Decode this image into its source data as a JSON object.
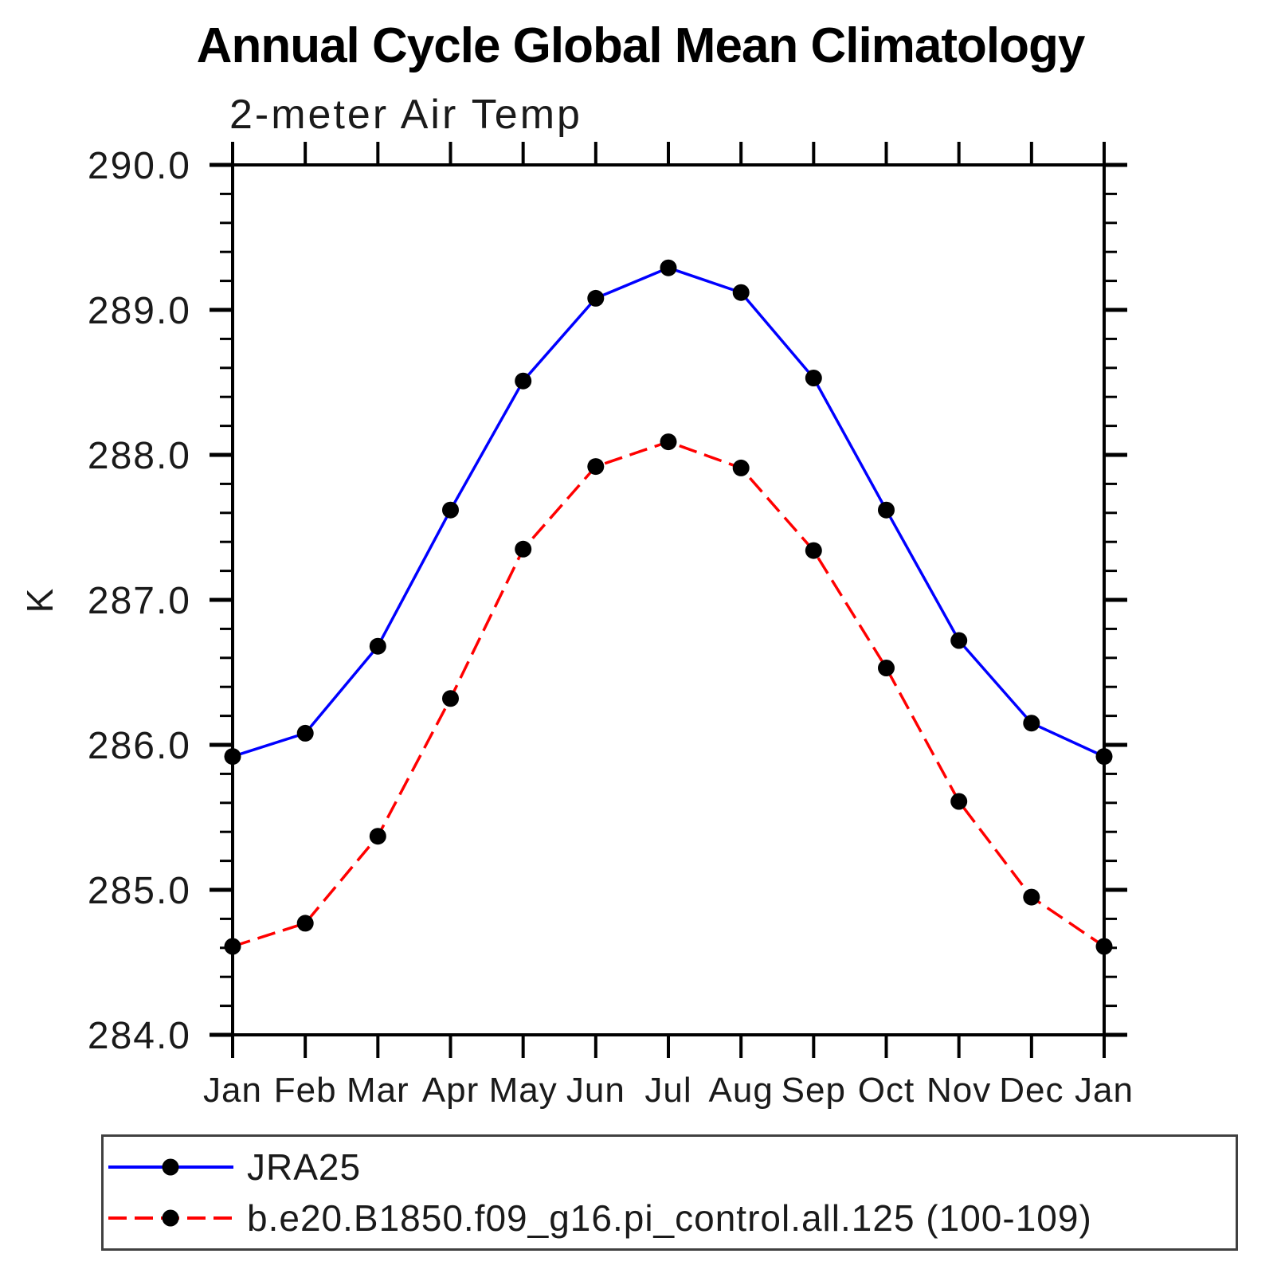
{
  "title": "Annual Cycle Global Mean Climatology",
  "subtitle": "2-meter Air Temp",
  "chart_data": {
    "type": "line",
    "title": "Annual Cycle Global Mean Climatology",
    "subtitle": "2-meter Air Temp",
    "ylabel": "K",
    "xlabel": "",
    "categories": [
      "Jan",
      "Feb",
      "Mar",
      "Apr",
      "May",
      "Jun",
      "Jul",
      "Aug",
      "Sep",
      "Oct",
      "Nov",
      "Dec",
      "Jan"
    ],
    "ylim": [
      284.0,
      290.0
    ],
    "y_major_ticks": [
      290.0,
      289.0,
      288.0,
      287.0,
      286.0,
      285.0,
      284.0
    ],
    "y_tick_labels": [
      "290.0",
      "289.0",
      "288.0",
      "287.0",
      "286.0",
      "285.0",
      "284.0"
    ],
    "y_minor_step": 0.2,
    "grid": false,
    "legend_position": "bottom",
    "series": [
      {
        "name": "JRA25",
        "color": "#0000ff",
        "line_style": "solid",
        "marker": "circle",
        "marker_color": "#000000",
        "values": [
          285.92,
          286.08,
          286.68,
          287.62,
          288.51,
          289.08,
          289.29,
          289.12,
          288.53,
          287.62,
          286.72,
          286.15,
          285.92
        ]
      },
      {
        "name": "b.e20.B1850.f09_g16.pi_control.all.125 (100-109)",
        "color": "#ff0000",
        "line_style": "dashed",
        "marker": "circle",
        "marker_color": "#000000",
        "values": [
          284.61,
          284.77,
          285.37,
          286.32,
          287.35,
          287.92,
          288.09,
          287.91,
          287.34,
          286.53,
          285.61,
          284.95,
          284.61
        ]
      }
    ]
  },
  "colors": {
    "background": "#ffffff",
    "axis": "#000000",
    "text": "#1a1a1a",
    "legend_border": "#404040",
    "series1": "#0000ff",
    "series2": "#ff0000",
    "marker": "#000000"
  }
}
